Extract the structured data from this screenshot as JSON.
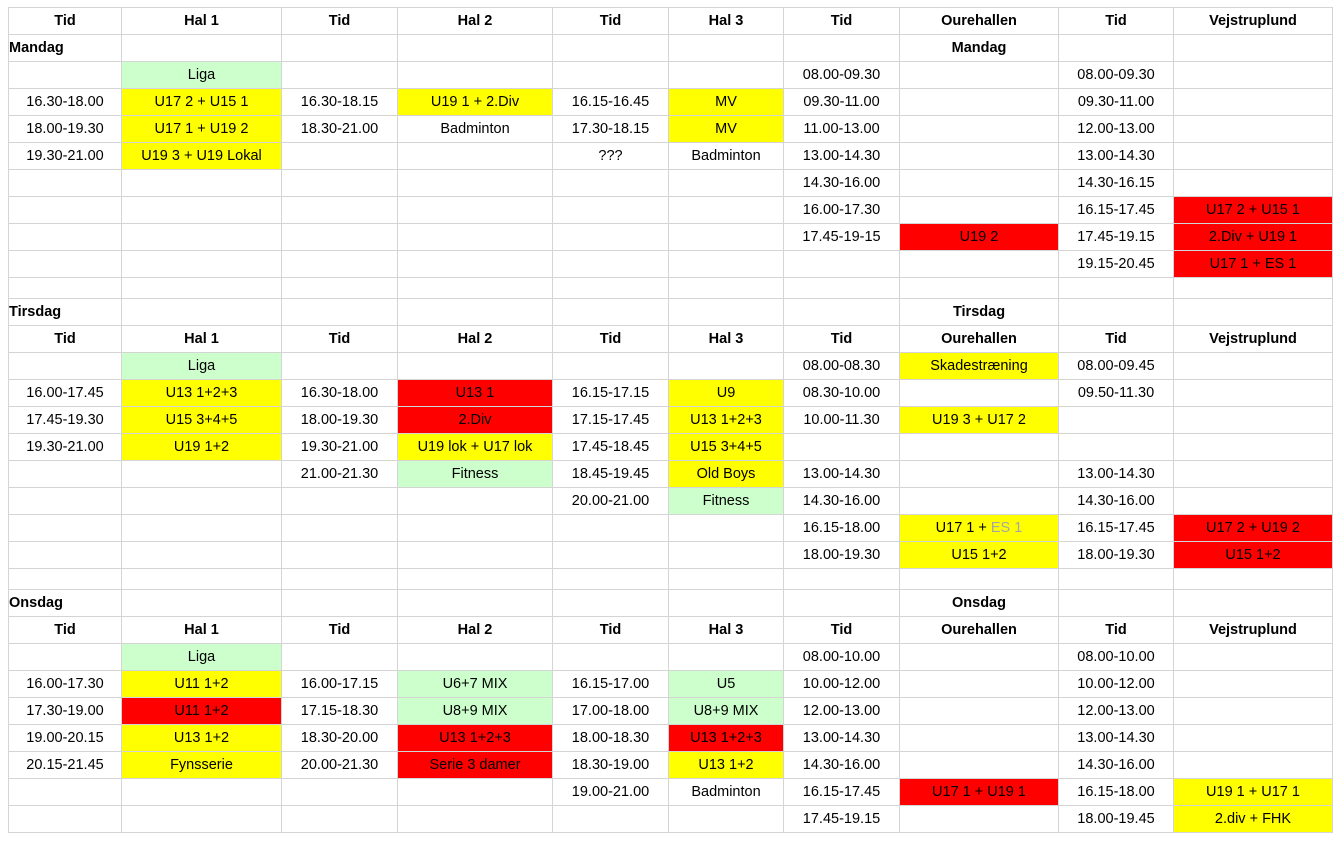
{
  "colors": {
    "yellow": "#ffff00",
    "red": "#ff0000",
    "green": "#ccffcc",
    "gridline": "#d4d4d4"
  },
  "headers": [
    "Tid",
    "Hal 1",
    "Tid",
    "Hal 2",
    "Tid",
    "Hal 3",
    "Tid",
    "Ourehallen",
    "Tid",
    "Vejstruplund"
  ],
  "rows": [
    {
      "kind": "header",
      "cells": [
        {
          "t": "Tid",
          "b": 1
        },
        {
          "t": "Hal 1",
          "b": 1
        },
        {
          "t": "Tid",
          "b": 1
        },
        {
          "t": "Hal 2",
          "b": 1
        },
        {
          "t": "Tid",
          "b": 1
        },
        {
          "t": "Hal 3",
          "b": 1
        },
        {
          "t": "Tid",
          "b": 1
        },
        {
          "t": "Ourehallen",
          "b": 1
        },
        {
          "t": "Tid",
          "b": 1
        },
        {
          "t": "Vejstruplund",
          "b": 1
        }
      ]
    },
    {
      "kind": "day",
      "cells": [
        {
          "t": "Mandag",
          "b": 1,
          "a": "l"
        },
        {
          "t": ""
        },
        {
          "t": ""
        },
        {
          "t": ""
        },
        {
          "t": ""
        },
        {
          "t": ""
        },
        {
          "t": ""
        },
        {
          "t": "Mandag",
          "b": 1
        },
        {
          "t": ""
        },
        {
          "t": ""
        }
      ]
    },
    {
      "cells": [
        {
          "t": ""
        },
        {
          "t": "Liga",
          "bg": "g"
        },
        {
          "t": ""
        },
        {
          "t": ""
        },
        {
          "t": ""
        },
        {
          "t": ""
        },
        {
          "t": "08.00-09.30"
        },
        {
          "t": ""
        },
        {
          "t": "08.00-09.30"
        },
        {
          "t": ""
        }
      ]
    },
    {
      "cells": [
        {
          "t": "16.30-18.00"
        },
        {
          "t": "U17 2 + U15 1",
          "bg": "y"
        },
        {
          "t": "16.30-18.15"
        },
        {
          "t": "U19 1 + 2.Div",
          "bg": "y"
        },
        {
          "t": "16.15-16.45"
        },
        {
          "t": "MV",
          "bg": "y"
        },
        {
          "t": "09.30-11.00"
        },
        {
          "t": ""
        },
        {
          "t": "09.30-11.00"
        },
        {
          "t": ""
        }
      ]
    },
    {
      "cells": [
        {
          "t": "18.00-19.30"
        },
        {
          "t": "U17 1 + U19 2",
          "bg": "y"
        },
        {
          "t": "18.30-21.00"
        },
        {
          "t": "Badminton"
        },
        {
          "t": "17.30-18.15"
        },
        {
          "t": "MV",
          "bg": "y"
        },
        {
          "t": "11.00-13.00"
        },
        {
          "t": ""
        },
        {
          "t": "12.00-13.00"
        },
        {
          "t": ""
        }
      ]
    },
    {
      "cells": [
        {
          "t": "19.30-21.00"
        },
        {
          "t": "U19 3 + U19 Lokal",
          "bg": "y"
        },
        {
          "t": ""
        },
        {
          "t": ""
        },
        {
          "t": "???"
        },
        {
          "t": "Badminton"
        },
        {
          "t": "13.00-14.30"
        },
        {
          "t": ""
        },
        {
          "t": "13.00-14.30"
        },
        {
          "t": ""
        }
      ]
    },
    {
      "cells": [
        {
          "t": ""
        },
        {
          "t": ""
        },
        {
          "t": ""
        },
        {
          "t": ""
        },
        {
          "t": ""
        },
        {
          "t": ""
        },
        {
          "t": "14.30-16.00"
        },
        {
          "t": ""
        },
        {
          "t": "14.30-16.15"
        },
        {
          "t": ""
        }
      ]
    },
    {
      "cells": [
        {
          "t": ""
        },
        {
          "t": ""
        },
        {
          "t": ""
        },
        {
          "t": ""
        },
        {
          "t": ""
        },
        {
          "t": ""
        },
        {
          "t": "16.00-17.30"
        },
        {
          "t": ""
        },
        {
          "t": "16.15-17.45"
        },
        {
          "t": "U17 2 + U15 1",
          "bg": "r"
        }
      ]
    },
    {
      "cells": [
        {
          "t": ""
        },
        {
          "t": ""
        },
        {
          "t": ""
        },
        {
          "t": ""
        },
        {
          "t": ""
        },
        {
          "t": ""
        },
        {
          "t": "17.45-19-15"
        },
        {
          "t": "U19 2",
          "bg": "r"
        },
        {
          "t": "17.45-19.15"
        },
        {
          "t": "2.Div + U19 1",
          "bg": "r"
        }
      ]
    },
    {
      "cells": [
        {
          "t": ""
        },
        {
          "t": ""
        },
        {
          "t": ""
        },
        {
          "t": ""
        },
        {
          "t": ""
        },
        {
          "t": ""
        },
        {
          "t": ""
        },
        {
          "t": ""
        },
        {
          "t": "19.15-20.45"
        },
        {
          "t": "U17 1 + ES 1",
          "bg": "r"
        }
      ]
    },
    {
      "kind": "spacer",
      "cells": [
        {
          "t": ""
        },
        {
          "t": ""
        },
        {
          "t": ""
        },
        {
          "t": ""
        },
        {
          "t": ""
        },
        {
          "t": ""
        },
        {
          "t": ""
        },
        {
          "t": ""
        },
        {
          "t": ""
        },
        {
          "t": ""
        }
      ]
    },
    {
      "kind": "day",
      "cells": [
        {
          "t": "Tirsdag",
          "b": 1,
          "a": "l"
        },
        {
          "t": ""
        },
        {
          "t": ""
        },
        {
          "t": ""
        },
        {
          "t": ""
        },
        {
          "t": ""
        },
        {
          "t": ""
        },
        {
          "t": "Tirsdag",
          "b": 1
        },
        {
          "t": ""
        },
        {
          "t": ""
        }
      ]
    },
    {
      "kind": "header",
      "cells": [
        {
          "t": "Tid",
          "b": 1
        },
        {
          "t": "Hal 1",
          "b": 1
        },
        {
          "t": "Tid",
          "b": 1
        },
        {
          "t": "Hal 2",
          "b": 1
        },
        {
          "t": "Tid",
          "b": 1
        },
        {
          "t": "Hal 3",
          "b": 1
        },
        {
          "t": "Tid",
          "b": 1
        },
        {
          "t": "Ourehallen",
          "b": 1
        },
        {
          "t": "Tid",
          "b": 1
        },
        {
          "t": "Vejstruplund",
          "b": 1
        }
      ]
    },
    {
      "cells": [
        {
          "t": ""
        },
        {
          "t": "Liga",
          "bg": "g"
        },
        {
          "t": ""
        },
        {
          "t": ""
        },
        {
          "t": ""
        },
        {
          "t": ""
        },
        {
          "t": "08.00-08.30"
        },
        {
          "t": "Skadestræning",
          "bg": "y"
        },
        {
          "t": "08.00-09.45"
        },
        {
          "t": ""
        }
      ]
    },
    {
      "cells": [
        {
          "t": "16.00-17.45"
        },
        {
          "t": "U13 1+2+3",
          "bg": "y"
        },
        {
          "t": "16.30-18.00"
        },
        {
          "t": "U13 1",
          "bg": "r"
        },
        {
          "t": "16.15-17.15"
        },
        {
          "t": "U9",
          "bg": "y"
        },
        {
          "t": "08.30-10.00"
        },
        {
          "t": ""
        },
        {
          "t": "09.50-11.30"
        },
        {
          "t": ""
        }
      ]
    },
    {
      "cells": [
        {
          "t": "17.45-19.30"
        },
        {
          "t": "U15    3+4+5",
          "bg": "y",
          "pre": 1
        },
        {
          "t": "18.00-19.30"
        },
        {
          "t": "2.Div",
          "bg": "r"
        },
        {
          "t": "17.15-17.45"
        },
        {
          "t": "U13 1+2+3",
          "bg": "y"
        },
        {
          "t": "10.00-11.30"
        },
        {
          "t": "U19 3 + U17 2",
          "bg": "y"
        },
        {
          "t": ""
        },
        {
          "t": ""
        }
      ]
    },
    {
      "cells": [
        {
          "t": "19.30-21.00"
        },
        {
          "t": "U19 1+2",
          "bg": "y"
        },
        {
          "t": "19.30-21.00"
        },
        {
          "t": "U19 lok + U17 lok",
          "bg": "y"
        },
        {
          "t": "17.45-18.45"
        },
        {
          "t": "U15      3+4+5",
          "bg": "y",
          "pre": 1
        },
        {
          "t": ""
        },
        {
          "t": ""
        },
        {
          "t": ""
        },
        {
          "t": ""
        }
      ]
    },
    {
      "cells": [
        {
          "t": ""
        },
        {
          "t": ""
        },
        {
          "t": "21.00-21.30"
        },
        {
          "t": "Fitness",
          "bg": "g"
        },
        {
          "t": "18.45-19.45"
        },
        {
          "t": "Old Boys",
          "bg": "y"
        },
        {
          "t": "13.00-14.30"
        },
        {
          "t": ""
        },
        {
          "t": "13.00-14.30"
        },
        {
          "t": ""
        }
      ]
    },
    {
      "cells": [
        {
          "t": ""
        },
        {
          "t": ""
        },
        {
          "t": ""
        },
        {
          "t": ""
        },
        {
          "t": "20.00-21.00"
        },
        {
          "t": "Fitness",
          "bg": "g"
        },
        {
          "t": "14.30-16.00"
        },
        {
          "t": ""
        },
        {
          "t": "14.30-16.00"
        },
        {
          "t": ""
        }
      ]
    },
    {
      "cells": [
        {
          "t": ""
        },
        {
          "t": ""
        },
        {
          "t": ""
        },
        {
          "t": ""
        },
        {
          "t": ""
        },
        {
          "t": ""
        },
        {
          "t": "16.15-18.00"
        },
        {
          "t": "U17 1 + ",
          "t2": "ES 1",
          "bg": "y"
        },
        {
          "t": "16.15-17.45"
        },
        {
          "t": "U17 2 + U19 2",
          "bg": "r"
        }
      ]
    },
    {
      "cells": [
        {
          "t": ""
        },
        {
          "t": ""
        },
        {
          "t": ""
        },
        {
          "t": ""
        },
        {
          "t": ""
        },
        {
          "t": ""
        },
        {
          "t": "18.00-19.30"
        },
        {
          "t": "U15 1+2",
          "bg": "y"
        },
        {
          "t": "18.00-19.30"
        },
        {
          "t": "U15 1+2",
          "bg": "r"
        }
      ]
    },
    {
      "kind": "spacer",
      "cells": [
        {
          "t": ""
        },
        {
          "t": ""
        },
        {
          "t": ""
        },
        {
          "t": ""
        },
        {
          "t": ""
        },
        {
          "t": ""
        },
        {
          "t": ""
        },
        {
          "t": ""
        },
        {
          "t": ""
        },
        {
          "t": ""
        }
      ]
    },
    {
      "kind": "day",
      "cells": [
        {
          "t": "Onsdag",
          "b": 1,
          "a": "l"
        },
        {
          "t": ""
        },
        {
          "t": ""
        },
        {
          "t": ""
        },
        {
          "t": ""
        },
        {
          "t": ""
        },
        {
          "t": ""
        },
        {
          "t": "Onsdag",
          "b": 1
        },
        {
          "t": ""
        },
        {
          "t": ""
        }
      ]
    },
    {
      "kind": "header",
      "cells": [
        {
          "t": "Tid",
          "b": 1
        },
        {
          "t": "Hal 1",
          "b": 1
        },
        {
          "t": "Tid",
          "b": 1
        },
        {
          "t": "Hal 2",
          "b": 1
        },
        {
          "t": "Tid",
          "b": 1
        },
        {
          "t": "Hal 3",
          "b": 1
        },
        {
          "t": "Tid",
          "b": 1
        },
        {
          "t": "Ourehallen",
          "b": 1
        },
        {
          "t": "Tid",
          "b": 1
        },
        {
          "t": "Vejstruplund",
          "b": 1
        }
      ]
    },
    {
      "cells": [
        {
          "t": ""
        },
        {
          "t": "Liga",
          "bg": "g"
        },
        {
          "t": ""
        },
        {
          "t": ""
        },
        {
          "t": ""
        },
        {
          "t": ""
        },
        {
          "t": "08.00-10.00"
        },
        {
          "t": ""
        },
        {
          "t": "08.00-10.00"
        },
        {
          "t": ""
        }
      ]
    },
    {
      "cells": [
        {
          "t": "16.00-17.30"
        },
        {
          "t": "U11 1+2",
          "bg": "y"
        },
        {
          "t": "16.00-17.15"
        },
        {
          "t": "U6+7 MIX",
          "bg": "g"
        },
        {
          "t": "16.15-17.00"
        },
        {
          "t": "U5",
          "bg": "g"
        },
        {
          "t": "10.00-12.00"
        },
        {
          "t": ""
        },
        {
          "t": "10.00-12.00"
        },
        {
          "t": ""
        }
      ]
    },
    {
      "cells": [
        {
          "t": "17.30-19.00"
        },
        {
          "t": "U11 1+2",
          "bg": "r"
        },
        {
          "t": "17.15-18.30"
        },
        {
          "t": "U8+9 MIX",
          "bg": "g"
        },
        {
          "t": "17.00-18.00"
        },
        {
          "t": "U8+9 MIX",
          "bg": "g"
        },
        {
          "t": "12.00-13.00"
        },
        {
          "t": ""
        },
        {
          "t": "12.00-13.00"
        },
        {
          "t": ""
        }
      ]
    },
    {
      "cells": [
        {
          "t": "19.00-20.15"
        },
        {
          "t": "U13 1+2",
          "bg": "y"
        },
        {
          "t": "18.30-20.00"
        },
        {
          "t": "U13 1+2+3",
          "bg": "r"
        },
        {
          "t": "18.00-18.30"
        },
        {
          "t": "U13 1+2+3",
          "bg": "r"
        },
        {
          "t": "13.00-14.30"
        },
        {
          "t": ""
        },
        {
          "t": "13.00-14.30"
        },
        {
          "t": ""
        }
      ]
    },
    {
      "cells": [
        {
          "t": "20.15-21.45"
        },
        {
          "t": "Fynsserie",
          "bg": "y"
        },
        {
          "t": "20.00-21.30"
        },
        {
          "t": "Serie 3 damer",
          "bg": "r"
        },
        {
          "t": "18.30-19.00"
        },
        {
          "t": "U13 1+2",
          "bg": "y"
        },
        {
          "t": "14.30-16.00"
        },
        {
          "t": ""
        },
        {
          "t": "14.30-16.00"
        },
        {
          "t": ""
        }
      ]
    },
    {
      "cells": [
        {
          "t": ""
        },
        {
          "t": ""
        },
        {
          "t": ""
        },
        {
          "t": ""
        },
        {
          "t": "19.00-21.00"
        },
        {
          "t": "Badminton"
        },
        {
          "t": "16.15-17.45"
        },
        {
          "t": "U17 1 + U19 1",
          "bg": "r"
        },
        {
          "t": "16.15-18.00"
        },
        {
          "t": "U19 1 + U17 1",
          "bg": "y"
        }
      ]
    },
    {
      "cells": [
        {
          "t": ""
        },
        {
          "t": ""
        },
        {
          "t": ""
        },
        {
          "t": ""
        },
        {
          "t": ""
        },
        {
          "t": ""
        },
        {
          "t": "17.45-19.15"
        },
        {
          "t": ""
        },
        {
          "t": "18.00-19.45"
        },
        {
          "t": "2.div + FHK",
          "bg": "y"
        }
      ]
    }
  ]
}
